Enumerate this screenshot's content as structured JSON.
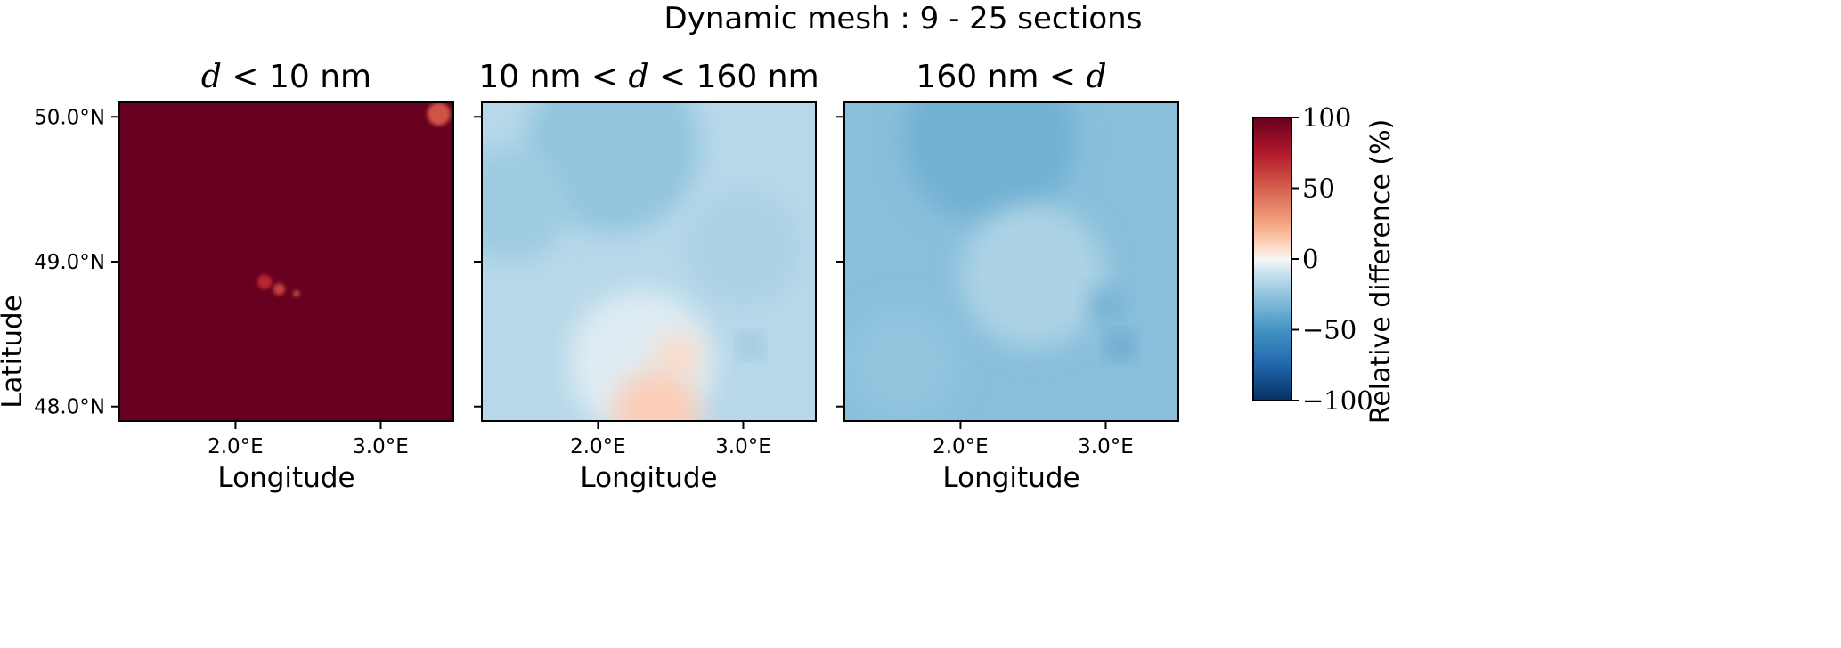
{
  "chart_data": {
    "type": "heatmap",
    "title": "Dynamic mesh : 9 - 25 sections",
    "ylabel": "Latitude",
    "xlabel": "Longitude",
    "x_ticks": [
      {
        "value": 2.0,
        "label": "2.0°E"
      },
      {
        "value": 3.0,
        "label": "3.0°E"
      }
    ],
    "y_ticks": [
      {
        "value": 50.0,
        "label": "50.0°N"
      },
      {
        "value": 49.0,
        "label": "49.0°N"
      },
      {
        "value": 48.0,
        "label": "48.0°N"
      }
    ],
    "xlim": [
      1.2,
      3.5
    ],
    "ylim": [
      47.9,
      50.1
    ],
    "panels": [
      {
        "title_parts": [
          {
            "text": "d",
            "math": true
          },
          {
            "text": " < ",
            "math": true
          },
          {
            "text": "10 nm",
            "math": false
          }
        ],
        "base_value": 100,
        "features": [
          {
            "lon": 3.4,
            "lat": 50.02,
            "value": 55,
            "radius_deg": 0.08
          },
          {
            "lon": 2.2,
            "lat": 48.86,
            "value": 70,
            "radius_deg": 0.05
          },
          {
            "lon": 2.3,
            "lat": 48.81,
            "value": 60,
            "radius_deg": 0.04
          },
          {
            "lon": 2.42,
            "lat": 48.78,
            "value": 50,
            "radius_deg": 0.02
          }
        ]
      },
      {
        "title_parts": [
          {
            "text": "10 nm",
            "math": false
          },
          {
            "text": " < ",
            "math": true
          },
          {
            "text": "d",
            "math": true
          },
          {
            "text": " < ",
            "math": true
          },
          {
            "text": "160 nm",
            "math": false
          }
        ],
        "base_value": -15,
        "features": [
          {
            "lon": 2.1,
            "lat": 49.8,
            "value": -25,
            "radius_deg": 0.6
          },
          {
            "lon": 1.4,
            "lat": 49.4,
            "value": -22,
            "radius_deg": 0.4
          },
          {
            "lon": 3.0,
            "lat": 49.1,
            "value": -18,
            "radius_deg": 0.4
          },
          {
            "lon": 2.3,
            "lat": 48.3,
            "value": -5,
            "radius_deg": 0.5
          },
          {
            "lon": 2.55,
            "lat": 48.35,
            "value": 8,
            "radius_deg": 0.15
          },
          {
            "lon": 2.4,
            "lat": 47.95,
            "value": 12,
            "radius_deg": 0.3
          },
          {
            "lon": 3.05,
            "lat": 48.42,
            "value": -38,
            "radius_deg": 0.06
          }
        ]
      },
      {
        "title_parts": [
          {
            "text": "160 nm",
            "math": false
          },
          {
            "text": " < ",
            "math": true
          },
          {
            "text": "d",
            "math": true
          }
        ],
        "base_value": -28,
        "features": [
          {
            "lon": 2.2,
            "lat": 49.85,
            "value": -35,
            "radius_deg": 0.6
          },
          {
            "lon": 2.5,
            "lat": 48.9,
            "value": -18,
            "radius_deg": 0.5
          },
          {
            "lon": 1.6,
            "lat": 48.3,
            "value": -25,
            "radius_deg": 0.4
          },
          {
            "lon": 3.1,
            "lat": 48.42,
            "value": -55,
            "radius_deg": 0.07
          },
          {
            "lon": 3.0,
            "lat": 48.7,
            "value": -40,
            "radius_deg": 0.1
          }
        ]
      }
    ],
    "colorbar": {
      "label": "Relative difference (%)",
      "colormap": "RdBu_r",
      "vmin": -100,
      "vmax": 100,
      "ticks": [
        {
          "value": 100,
          "label": "100"
        },
        {
          "value": 50,
          "label": "50"
        },
        {
          "value": 0,
          "label": "0"
        },
        {
          "value": -50,
          "label": "−50"
        },
        {
          "value": -100,
          "label": "−100"
        }
      ]
    }
  }
}
